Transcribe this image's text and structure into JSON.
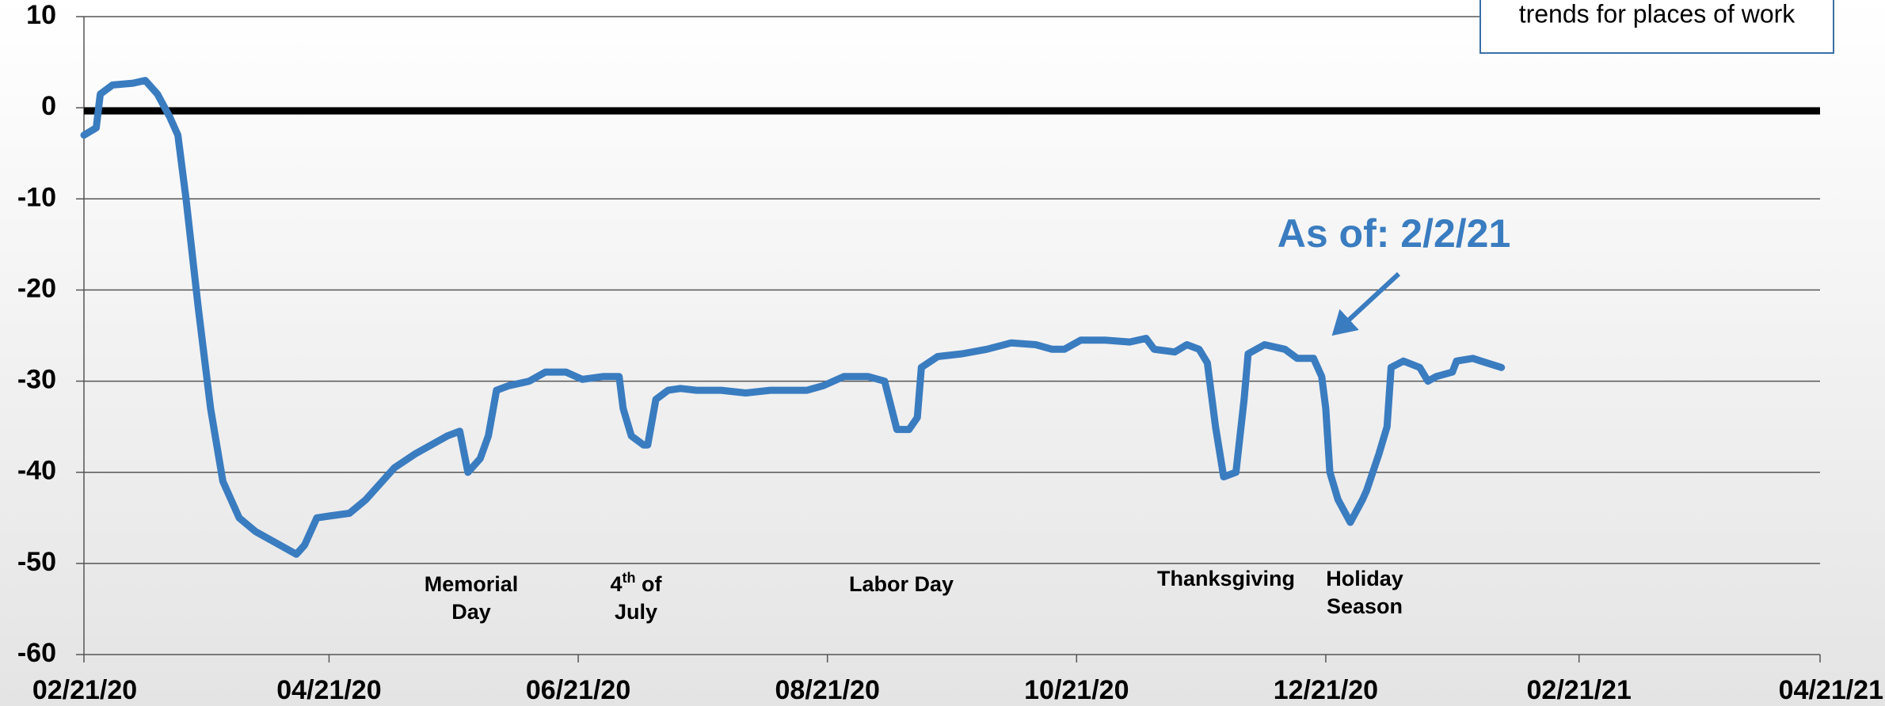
{
  "chart_data": {
    "type": "line",
    "legend_text": "trends for places of work",
    "callout": "As of: 2/2/21",
    "annotations": [
      "Memorial Day",
      "4th of July",
      "Labor Day",
      "Thanksgiving",
      "Holiday Season"
    ],
    "x": [
      "02/21/20",
      "02/24/20",
      "02/25/20",
      "02/28/20",
      "03/04/20",
      "03/07/20",
      "03/10/20",
      "03/13/20",
      "03/15/20",
      "03/17/20",
      "03/20/20",
      "03/23/20",
      "03/26/20",
      "03/30/20",
      "04/03/20",
      "04/09/20",
      "04/13/20",
      "04/15/20",
      "04/18/20",
      "04/21/20",
      "04/26/20",
      "04/30/20",
      "05/03/20",
      "05/07/20",
      "05/12/20",
      "05/16/20",
      "05/20/20",
      "05/23/20",
      "05/25/20",
      "05/28/20",
      "05/30/20",
      "06/01/20",
      "06/04/20",
      "06/09/20",
      "06/13/20",
      "06/18/20",
      "06/22/20",
      "06/27/20",
      "07/01/20",
      "07/02/20",
      "07/04/20",
      "07/07/20",
      "07/08/20",
      "07/10/20",
      "07/13/20",
      "07/16/20",
      "07/20/20",
      "07/26/20",
      "08/01/20",
      "08/07/20",
      "08/16/20",
      "08/20/20",
      "08/25/20",
      "08/31/20",
      "09/04/20",
      "09/07/20",
      "09/10/20",
      "09/12/20",
      "09/13/20",
      "09/17/20",
      "09/23/20",
      "09/29/20",
      "10/05/20",
      "10/11/20",
      "10/15/20",
      "10/18/20",
      "10/22/20",
      "10/28/20",
      "11/03/20",
      "11/07/20",
      "11/09/20",
      "11/14/20",
      "11/17/20",
      "11/20/20",
      "11/22/20",
      "11/24/20",
      "11/26/20",
      "11/29/20",
      "12/01/20",
      "12/02/20",
      "12/06/20",
      "12/11/20",
      "12/14/20",
      "12/18/20",
      "12/20/20",
      "12/21/20",
      "12/22/20",
      "12/24/20",
      "12/27/20",
      "12/30/20",
      "12/31/20",
      "01/03/21",
      "01/05/21",
      "01/06/21",
      "01/09/21",
      "01/13/21",
      "01/15/21",
      "01/17/21",
      "01/21/21",
      "01/22/21",
      "01/26/21",
      "01/28/21",
      "02/02/21"
    ],
    "series": [
      {
        "color": "#3a7cc0",
        "values": [
          -3,
          -2.2,
          1.5,
          2.5,
          2.7,
          3,
          1.5,
          -1,
          -3,
          -10,
          -22,
          -33,
          -41,
          -45,
          -46.5,
          -48,
          -49,
          -48,
          -45,
          -44.8,
          -44.5,
          -43,
          -41.5,
          -39.5,
          -38,
          -37,
          -36,
          -35.5,
          -40,
          -38.5,
          -36,
          -31,
          -30.5,
          -30,
          -29,
          -29,
          -29.8,
          -29.5,
          -29.5,
          -33,
          -36,
          -37,
          -37,
          -32,
          -31,
          -30.8,
          -31,
          -31,
          -31.3,
          -31,
          -31,
          -30.5,
          -29.5,
          -29.5,
          -30,
          -35.3,
          -35.3,
          -34,
          -28.5,
          -27.3,
          -27,
          -26.5,
          -25.8,
          -26,
          -26.5,
          -26.5,
          -25.5,
          -25.5,
          -25.7,
          -25.3,
          -26.5,
          -26.8,
          -26,
          -26.5,
          -28,
          -35,
          -40.5,
          -40,
          -32,
          -27,
          -26,
          -26.5,
          -27.5,
          -27.5,
          -29.5,
          -33,
          -40,
          -43,
          -45.5,
          -43,
          -42,
          -38,
          -35,
          -28.5,
          -27.8,
          -28.5,
          -30,
          -29.5,
          -29,
          -27.8,
          -27.5,
          -27.8,
          -28.5
        ]
      }
    ],
    "xlim": [
      "02/21/20",
      "04/21/21"
    ],
    "xticks": [
      "02/21/20",
      "04/21/20",
      "06/21/20",
      "08/21/20",
      "10/21/20",
      "12/21/20",
      "02/21/21",
      "04/21/21"
    ],
    "ylim": [
      -60,
      10
    ],
    "yticks": [
      -60,
      -50,
      -40,
      -30,
      -20,
      -10,
      0,
      10
    ],
    "grid": true,
    "zero_line": true
  }
}
